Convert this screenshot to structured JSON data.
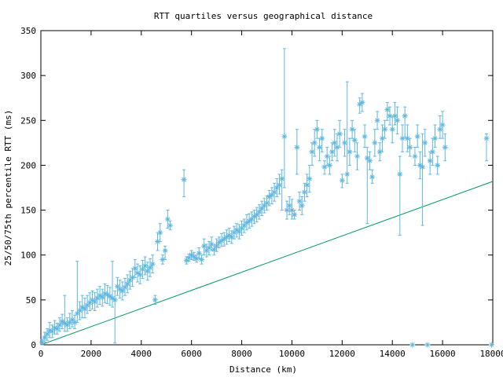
{
  "chart_data": {
    "type": "scatter",
    "title": "RTT quartiles versus geographical distance",
    "xlabel": "Distance (km)",
    "ylabel": "25/50/75th percentile RTT (ms)",
    "xlim": [
      0,
      18000
    ],
    "ylim": [
      0,
      350
    ],
    "xticks": [
      0,
      2000,
      4000,
      6000,
      8000,
      10000,
      12000,
      14000,
      16000,
      18000
    ],
    "yticks": [
      0,
      50,
      100,
      150,
      200,
      250,
      300,
      350
    ],
    "grid": false,
    "legend": "none",
    "colors": {
      "points": "#5fb7e0",
      "reference_line": "#009966"
    },
    "series": [
      {
        "kind": "median with 25th-75th percentile error bars",
        "points": [
          [
            50,
            3,
            0,
            6
          ],
          [
            150,
            8,
            3,
            14
          ],
          [
            250,
            12,
            5,
            18
          ],
          [
            350,
            16,
            8,
            25
          ],
          [
            450,
            15,
            8,
            22
          ],
          [
            550,
            19,
            12,
            27
          ],
          [
            650,
            18,
            12,
            24
          ],
          [
            750,
            22,
            15,
            30
          ],
          [
            850,
            26,
            18,
            34
          ],
          [
            950,
            24,
            15,
            55
          ],
          [
            1050,
            22,
            15,
            30
          ],
          [
            1150,
            25,
            18,
            35
          ],
          [
            1250,
            28,
            20,
            38
          ],
          [
            1350,
            25,
            18,
            33
          ],
          [
            1450,
            35,
            25,
            93
          ],
          [
            1550,
            38,
            28,
            48
          ],
          [
            1650,
            42,
            30,
            55
          ],
          [
            1750,
            40,
            30,
            52
          ],
          [
            1850,
            44,
            35,
            55
          ],
          [
            1950,
            47,
            38,
            58
          ],
          [
            2050,
            50,
            40,
            60
          ],
          [
            2150,
            48,
            38,
            58
          ],
          [
            2250,
            52,
            42,
            62
          ],
          [
            2350,
            55,
            45,
            65
          ],
          [
            2450,
            53,
            43,
            62
          ],
          [
            2550,
            57,
            47,
            68
          ],
          [
            2650,
            56,
            46,
            66
          ],
          [
            2750,
            54,
            44,
            64
          ],
          [
            2850,
            52,
            42,
            93
          ],
          [
            2950,
            50,
            2,
            60
          ],
          [
            3050,
            65,
            55,
            75
          ],
          [
            3150,
            62,
            52,
            72
          ],
          [
            3250,
            60,
            50,
            70
          ],
          [
            3350,
            64,
            55,
            74
          ],
          [
            3450,
            68,
            58,
            78
          ],
          [
            3550,
            72,
            62,
            82
          ],
          [
            3650,
            75,
            65,
            85
          ],
          [
            3750,
            85,
            75,
            95
          ],
          [
            3850,
            80,
            70,
            90
          ],
          [
            3950,
            78,
            68,
            88
          ],
          [
            4050,
            84,
            74,
            94
          ],
          [
            4150,
            88,
            78,
            98
          ],
          [
            4250,
            82,
            72,
            92
          ],
          [
            4350,
            86,
            76,
            96
          ],
          [
            4450,
            90,
            80,
            100
          ],
          [
            4550,
            50,
            45,
            55
          ],
          [
            4650,
            115,
            105,
            125
          ],
          [
            4750,
            125,
            115,
            135
          ],
          [
            4850,
            95,
            90,
            100
          ],
          [
            4950,
            105,
            95,
            110
          ],
          [
            5050,
            140,
            130,
            150
          ],
          [
            5150,
            133,
            128,
            138
          ],
          [
            5700,
            184,
            165,
            195
          ],
          [
            5800,
            94,
            90,
            98
          ],
          [
            5900,
            97,
            93,
            101
          ],
          [
            6000,
            100,
            95,
            105
          ],
          [
            6100,
            98,
            94,
            103
          ],
          [
            6200,
            96,
            92,
            100
          ],
          [
            6300,
            102,
            96,
            108
          ],
          [
            6400,
            95,
            90,
            100
          ],
          [
            6500,
            110,
            100,
            118
          ],
          [
            6600,
            105,
            98,
            112
          ],
          [
            6700,
            108,
            100,
            115
          ],
          [
            6800,
            112,
            105,
            120
          ],
          [
            6900,
            106,
            100,
            112
          ],
          [
            7000,
            110,
            104,
            118
          ],
          [
            7100,
            114,
            108,
            120
          ],
          [
            7200,
            116,
            110,
            124
          ],
          [
            7300,
            118,
            110,
            125
          ],
          [
            7400,
            120,
            112,
            128
          ],
          [
            7500,
            122,
            115,
            130
          ],
          [
            7600,
            120,
            113,
            127
          ],
          [
            7700,
            125,
            118,
            132
          ],
          [
            7800,
            128,
            120,
            135
          ],
          [
            7900,
            126,
            118,
            134
          ],
          [
            8000,
            130,
            122,
            138
          ],
          [
            8100,
            133,
            125,
            140
          ],
          [
            8200,
            136,
            128,
            145
          ],
          [
            8300,
            138,
            130,
            146
          ],
          [
            8400,
            140,
            132,
            148
          ],
          [
            8500,
            143,
            135,
            150
          ],
          [
            8600,
            145,
            137,
            153
          ],
          [
            8700,
            148,
            140,
            156
          ],
          [
            8800,
            152,
            144,
            160
          ],
          [
            8900,
            155,
            147,
            163
          ],
          [
            9000,
            158,
            150,
            166
          ],
          [
            9100,
            165,
            155,
            172
          ],
          [
            9200,
            167,
            157,
            175
          ],
          [
            9300,
            170,
            160,
            180
          ],
          [
            9400,
            175,
            165,
            185
          ],
          [
            9500,
            178,
            168,
            190
          ],
          [
            9600,
            185,
            150,
            195
          ],
          [
            9700,
            232,
            175,
            330
          ],
          [
            9800,
            150,
            140,
            160
          ],
          [
            9900,
            155,
            145,
            165
          ],
          [
            10000,
            150,
            140,
            162
          ],
          [
            10100,
            145,
            140,
            150
          ],
          [
            10200,
            220,
            190,
            240
          ],
          [
            10300,
            160,
            150,
            170
          ],
          [
            10400,
            155,
            145,
            165
          ],
          [
            10500,
            170,
            160,
            180
          ],
          [
            10600,
            178,
            165,
            190
          ],
          [
            10700,
            185,
            170,
            200
          ],
          [
            10800,
            215,
            200,
            225
          ],
          [
            10900,
            225,
            210,
            240
          ],
          [
            11000,
            240,
            230,
            250
          ],
          [
            11100,
            220,
            205,
            230
          ],
          [
            11200,
            230,
            215,
            240
          ],
          [
            11300,
            198,
            190,
            205
          ],
          [
            11400,
            210,
            200,
            220
          ],
          [
            11500,
            200,
            190,
            210
          ],
          [
            11600,
            215,
            205,
            225
          ],
          [
            11700,
            225,
            210,
            240
          ],
          [
            11800,
            220,
            205,
            235
          ],
          [
            11900,
            235,
            220,
            250
          ],
          [
            12000,
            183,
            175,
            190
          ],
          [
            12100,
            225,
            210,
            240
          ],
          [
            12200,
            190,
            180,
            293
          ],
          [
            12300,
            215,
            200,
            230
          ],
          [
            12400,
            240,
            230,
            250
          ],
          [
            12500,
            228,
            215,
            240
          ],
          [
            12600,
            210,
            195,
            225
          ],
          [
            12700,
            268,
            258,
            275
          ],
          [
            12800,
            270,
            260,
            280
          ],
          [
            12900,
            232,
            220,
            245
          ],
          [
            13000,
            208,
            135,
            220
          ],
          [
            13100,
            205,
            195,
            215
          ],
          [
            13200,
            187,
            180,
            195
          ],
          [
            13300,
            225,
            210,
            240
          ],
          [
            13400,
            250,
            240,
            260
          ],
          [
            13500,
            215,
            205,
            225
          ],
          [
            13600,
            230,
            215,
            245
          ],
          [
            13700,
            240,
            230,
            250
          ],
          [
            13800,
            262,
            250,
            270
          ],
          [
            13900,
            255,
            245,
            265
          ],
          [
            14000,
            240,
            225,
            255
          ],
          [
            14100,
            255,
            245,
            270
          ],
          [
            14200,
            250,
            235,
            265
          ],
          [
            14300,
            190,
            122,
            210
          ],
          [
            14400,
            230,
            215,
            245
          ],
          [
            14500,
            255,
            230,
            265
          ],
          [
            14600,
            230,
            215,
            245
          ],
          [
            14700,
            220,
            210,
            230
          ],
          [
            14800,
            0,
            0,
            0
          ],
          [
            14900,
            210,
            200,
            220
          ],
          [
            15000,
            232,
            220,
            245
          ],
          [
            15100,
            200,
            185,
            215
          ],
          [
            15200,
            198,
            133,
            235
          ],
          [
            15300,
            225,
            210,
            240
          ],
          [
            15400,
            0,
            0,
            0
          ],
          [
            15500,
            205,
            190,
            215
          ],
          [
            15600,
            215,
            200,
            230
          ],
          [
            15700,
            230,
            220,
            245
          ],
          [
            15800,
            200,
            190,
            210
          ],
          [
            15900,
            240,
            230,
            255
          ],
          [
            16000,
            245,
            230,
            260
          ],
          [
            16100,
            220,
            205,
            235
          ],
          [
            17750,
            230,
            205,
            235
          ],
          [
            17950,
            0,
            0,
            0
          ]
        ]
      },
      {
        "kind": "straight line reference",
        "points": [
          [
            0,
            0
          ],
          [
            18000,
            182
          ]
        ]
      }
    ]
  }
}
